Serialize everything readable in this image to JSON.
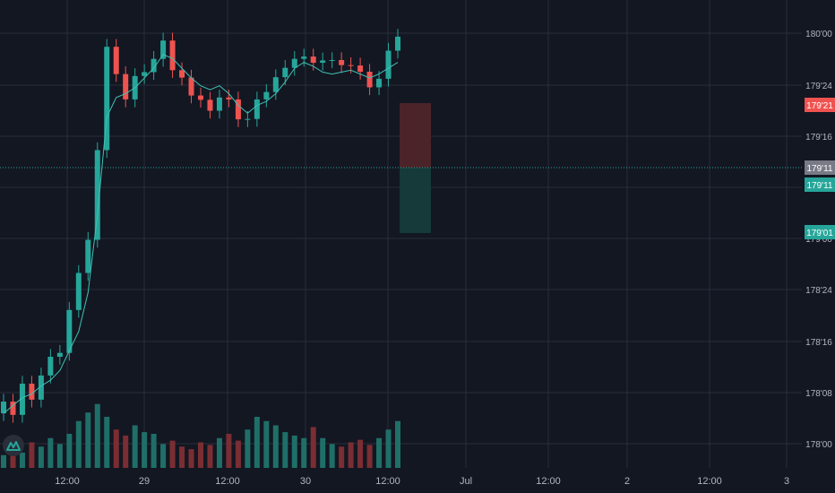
{
  "colors": {
    "background": "#131722",
    "grid": "#2a2e39",
    "up": "#26a69a",
    "down": "#ef5350",
    "up_volume": "#1f6f68",
    "down_volume": "#7a2e33",
    "ma_line": "#3fc1b4",
    "axis_text": "#b2b5be",
    "stop_zone": "#4a2428",
    "target_zone": "#16393a"
  },
  "price_axis": {
    "tick_labels": [
      "180'00",
      "179'24",
      "179'16",
      "179'08",
      "179'00",
      "178'24",
      "178'16",
      "178'08",
      "178'00"
    ],
    "badges": {
      "stop": "179'21",
      "last": "179'11",
      "entry": "179'11",
      "target": "179'01"
    }
  },
  "time_axis": {
    "tick_labels": [
      "12:00",
      "29",
      "12:00",
      "30",
      "12:00",
      "Jul",
      "12:00",
      "2",
      "12:00",
      "3"
    ]
  },
  "logo": {
    "icon": "tradingview-logo-icon"
  },
  "chart_data": {
    "type": "candlestick",
    "y_unit": "32nds of a point",
    "y_range": [
      5759.5,
      5761.9
    ],
    "ma_values": [
      5759.78,
      5759.82,
      5759.86,
      5759.88,
      5759.92,
      5759.95,
      5760.0,
      5760.1,
      5760.2,
      5760.4,
      5760.8,
      5761.3,
      5761.4,
      5761.42,
      5761.45,
      5761.5,
      5761.55,
      5761.62,
      5761.6,
      5761.55,
      5761.5,
      5761.46,
      5761.44,
      5761.46,
      5761.42,
      5761.36,
      5761.32,
      5761.36,
      5761.38,
      5761.42,
      5761.48,
      5761.55,
      5761.58,
      5761.56,
      5761.53,
      5761.52,
      5761.53,
      5761.54,
      5761.52,
      5761.5,
      5761.52,
      5761.55,
      5761.58
    ],
    "volumes": [
      0.15,
      0.2,
      0.18,
      0.3,
      0.25,
      0.35,
      0.28,
      0.4,
      0.55,
      0.65,
      0.75,
      0.6,
      0.45,
      0.38,
      0.5,
      0.42,
      0.4,
      0.28,
      0.32,
      0.25,
      0.22,
      0.3,
      0.27,
      0.35,
      0.4,
      0.32,
      0.45,
      0.6,
      0.55,
      0.5,
      0.42,
      0.38,
      0.35,
      0.48,
      0.35,
      0.28,
      0.25,
      0.3,
      0.33,
      0.27,
      0.35,
      0.45,
      0.55
    ]
  }
}
